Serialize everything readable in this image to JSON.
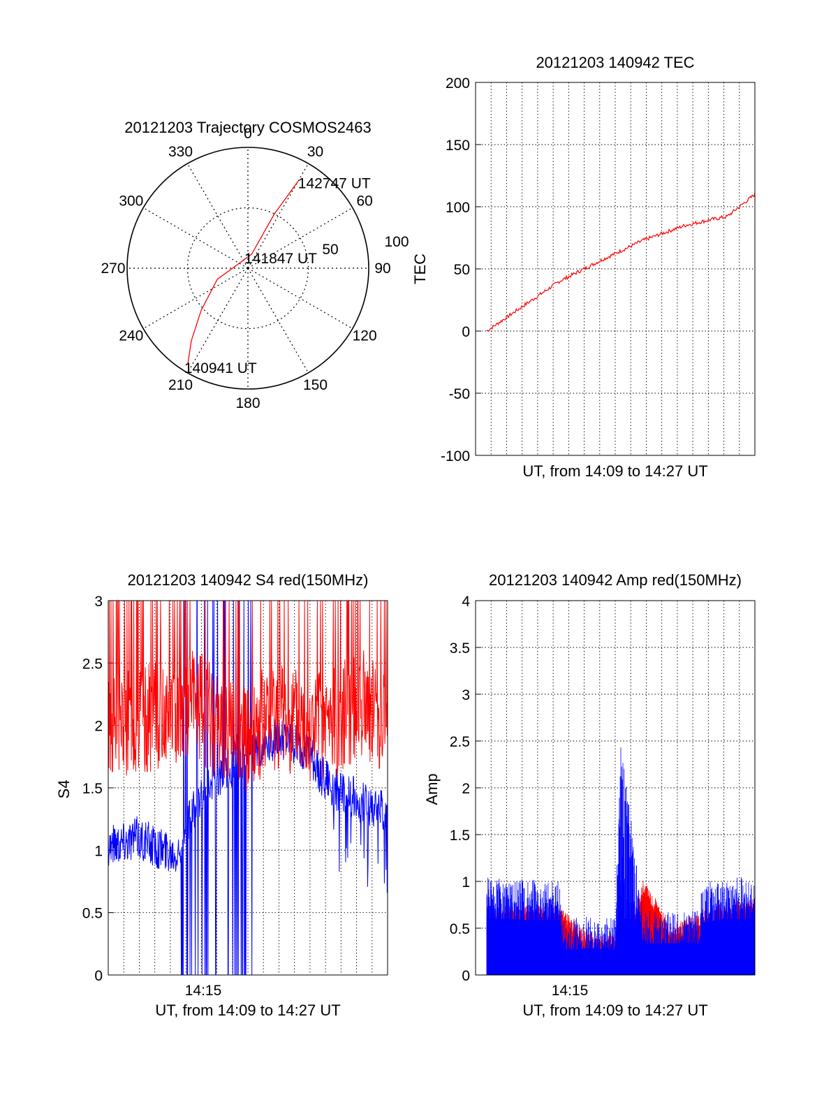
{
  "chart_data": [
    {
      "type": "polar",
      "title": "20121203 Trajectory COSMOS2463",
      "azimuth_labels": [
        "0",
        "30",
        "60",
        "90",
        "120",
        "150",
        "180",
        "210",
        "240",
        "270",
        "300",
        "330"
      ],
      "elevation_labels": [
        "100",
        "50"
      ],
      "grid": true,
      "colors": {
        "trajectory": "#ff0000"
      },
      "trajectory": [
        {
          "az": 212,
          "r": 0.94
        },
        {
          "az": 218,
          "r": 0.76
        },
        {
          "az": 228,
          "r": 0.52
        },
        {
          "az": 250,
          "r": 0.27
        },
        {
          "az": 15,
          "r": 0.12
        },
        {
          "az": 26,
          "r": 0.5
        },
        {
          "az": 30,
          "r": 0.83
        }
      ],
      "annotations": [
        {
          "text": "142747 UT",
          "az": 30,
          "r": 0.83
        },
        {
          "text": "141847 UT",
          "az": 80,
          "r": 0.1
        },
        {
          "text": "140941 UT",
          "az": 212,
          "r": 0.94
        }
      ]
    },
    {
      "type": "line",
      "title": "20121203 140942 TEC",
      "xlabel": "UT, from 14:09 to 14:27 UT",
      "ylabel": "TEC",
      "xlim": [
        0,
        1
      ],
      "ylim": [
        -100,
        200
      ],
      "yticks": [
        "-100",
        "-50",
        "0",
        "50",
        "100",
        "150",
        "200"
      ],
      "grid": true,
      "series": [
        {
          "color": "#ff0000",
          "x": [
            0.04,
            0.15,
            0.3,
            0.45,
            0.6,
            0.75,
            0.85,
            0.9,
            1.0
          ],
          "y": [
            0,
            17,
            40,
            57,
            73,
            85,
            90,
            92,
            110
          ]
        }
      ]
    },
    {
      "type": "line",
      "title": "20121203 140942 S4 red(150MHz)",
      "xlabel": "UT, from 14:09 to 14:27 UT",
      "ylabel": "S4",
      "ylim": [
        0,
        3
      ],
      "yticks": [
        "0",
        "0.5",
        "1",
        "1.5",
        "2",
        "2.5",
        "3"
      ],
      "xtick_label": "14:15",
      "grid": true,
      "series": [
        {
          "color": "#ff0000",
          "x": [
            0.0,
            0.1,
            0.2,
            0.3,
            0.4,
            0.5,
            0.6,
            0.7,
            0.8,
            0.9,
            1.0
          ],
          "y": [
            2.0,
            2.0,
            2.1,
            2.2,
            2.0,
            1.9,
            2.1,
            2.0,
            2.0,
            2.2,
            2.0
          ]
        },
        {
          "color": "#0000ff",
          "x": [
            0.0,
            0.1,
            0.2,
            0.25,
            0.3,
            0.4,
            0.5,
            0.6,
            0.7,
            0.8,
            0.9,
            1.0
          ],
          "y": [
            1.05,
            1.1,
            1.0,
            1.0,
            1.3,
            1.6,
            1.8,
            1.9,
            1.8,
            1.5,
            1.4,
            1.3
          ]
        }
      ]
    },
    {
      "type": "line",
      "title": "20121203 140942 Amp red(150MHz)",
      "xlabel": "UT, from 14:09 to 14:27 UT",
      "ylabel": "Amp",
      "ylim": [
        0,
        4
      ],
      "yticks": [
        "0",
        "0.5",
        "1",
        "1.5",
        "2",
        "2.5",
        "3",
        "3.5",
        "4"
      ],
      "xtick_label": "14:15",
      "grid": true,
      "series": [
        {
          "color": "#ff0000",
          "x": [
            0.04,
            0.3,
            0.4,
            0.5,
            0.55,
            0.6,
            0.7,
            0.85,
            1.0
          ],
          "y": [
            0.6,
            0.6,
            0.32,
            0.3,
            0.35,
            0.9,
            0.4,
            0.6,
            0.7
          ]
        },
        {
          "color": "#0000ff",
          "x": [
            0.04,
            0.1,
            0.2,
            0.3,
            0.31,
            0.4,
            0.5,
            0.52,
            0.6,
            0.7,
            0.8,
            0.81,
            0.9,
            1.0
          ],
          "y": [
            0.8,
            0.8,
            0.78,
            0.78,
            0.35,
            0.38,
            0.36,
            2.25,
            0.45,
            0.45,
            0.45,
            0.75,
            0.8,
            0.8
          ]
        }
      ]
    }
  ]
}
